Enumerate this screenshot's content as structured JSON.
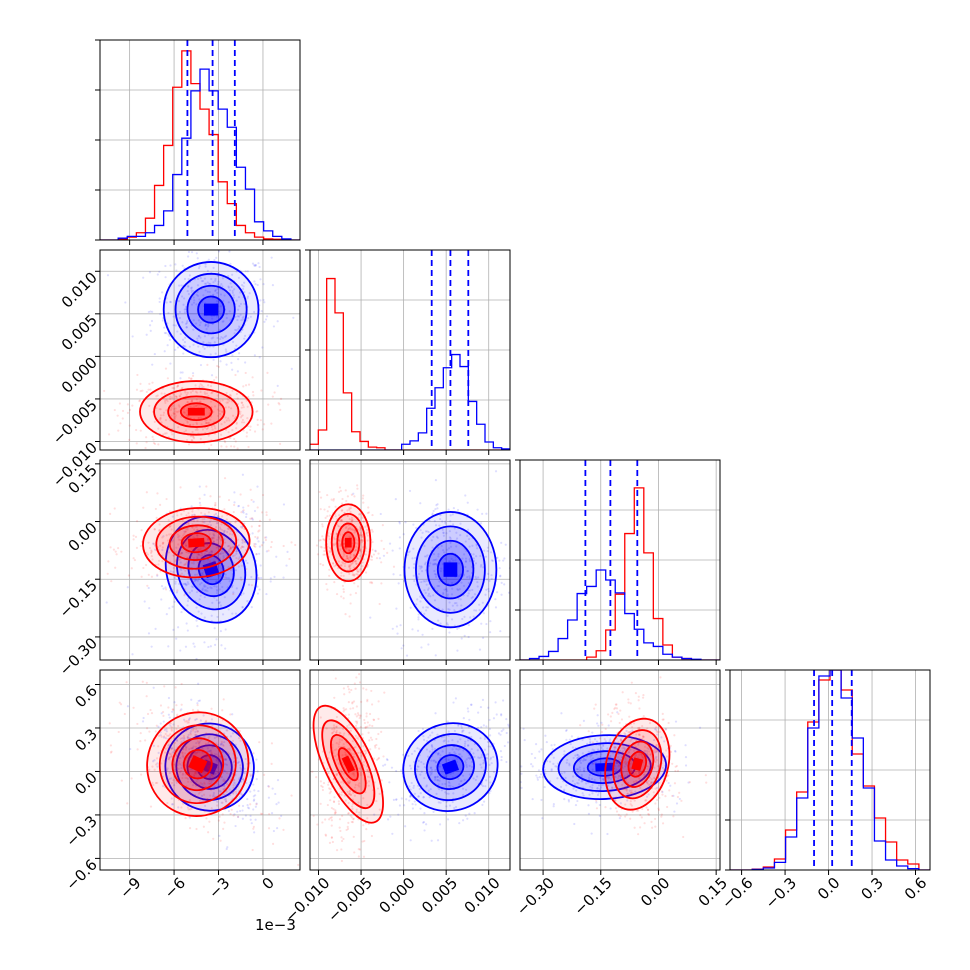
{
  "chart_data": {
    "type": "corner",
    "colors": {
      "series_a": "#0000ff",
      "series_b": "#ff0000"
    },
    "grid": true,
    "dashed_quantile_lines_color": "#0000ff",
    "scatter_present": true,
    "contours_present": true,
    "x_offset_label": "1e−3",
    "params": [
      {
        "range": [
          -11,
          2.5
        ],
        "ticks": [
          -9,
          -6,
          -3,
          0
        ],
        "tick_labels": [
          "−9",
          "−6",
          "−3",
          "0"
        ],
        "quantiles": [
          -5.1,
          -3.4,
          -1.9
        ],
        "hist_ylim": [
          0,
          0.0055
        ],
        "hist_a": [
          0,
          0,
          5e-05,
          0.0001,
          0.0001,
          0.0002,
          0.0004,
          0.0008,
          0.0018,
          0.0028,
          0.0041,
          0.0047,
          0.0041,
          0.0036,
          0.0031,
          0.002,
          0.0014,
          0.0005,
          0.00025,
          0.0001,
          3e-05,
          0
        ],
        "hist_b": [
          0,
          0,
          3e-05,
          8e-05,
          0.0002,
          0.0006,
          0.0015,
          0.0026,
          0.0042,
          0.0052,
          0.0043,
          0.0036,
          0.0029,
          0.0016,
          0.001,
          0.0004,
          0.0002,
          8e-05,
          3e-05,
          2e-05,
          0,
          0
        ]
      },
      {
        "range": [
          -0.011,
          0.0125
        ],
        "ticks": [
          -0.01,
          -0.005,
          0.0,
          0.005,
          0.01
        ],
        "tick_labels": [
          "−0.010",
          "−0.005",
          "0.000",
          "0.005",
          "0.010"
        ],
        "quantiles": [
          0.0033,
          0.0055,
          0.0076
        ],
        "hist_ylim": [
          0,
          0.35
        ],
        "hist_a": [
          0,
          0,
          0,
          0,
          0,
          0,
          0,
          0,
          0,
          0,
          0,
          0.01,
          0.016,
          0.03,
          0.073,
          0.109,
          0.144,
          0.167,
          0.146,
          0.085,
          0.045,
          0.014,
          0.004,
          0.002
        ],
        "hist_b": [
          0.01,
          0.035,
          0.3,
          0.24,
          0.1,
          0.032,
          0.015,
          0.005,
          0.004,
          0,
          0,
          0,
          0,
          0,
          0,
          0,
          0,
          0,
          0,
          0,
          0,
          0,
          0,
          0
        ]
      },
      {
        "range": [
          -0.36,
          0.16
        ],
        "ticks": [
          -0.3,
          -0.15,
          0.0,
          0.15
        ],
        "tick_labels": [
          "−0.30",
          "−0.15",
          "0.00",
          "0.15"
        ],
        "quantiles": [
          -0.19,
          -0.125,
          -0.055
        ],
        "hist_ylim": [
          0,
          0.28
        ],
        "hist_a": [
          0,
          0.002,
          0.005,
          0.012,
          0.03,
          0.056,
          0.093,
          0.103,
          0.126,
          0.112,
          0.094,
          0.065,
          0.043,
          0.024,
          0.019,
          0.008,
          0.004,
          0.002,
          0.001,
          0,
          0
        ],
        "hist_b": [
          0,
          0,
          0,
          0,
          0,
          0,
          0,
          0.004,
          0.013,
          0.042,
          0.092,
          0.177,
          0.241,
          0.15,
          0.058,
          0.021,
          0.004,
          0.002,
          0,
          0,
          0
        ]
      },
      {
        "range": [
          -0.68,
          0.7
        ],
        "ticks": [
          -0.6,
          -0.3,
          0.0,
          0.3,
          0.6
        ],
        "tick_labels": [
          "−0.6",
          "−0.3",
          "0.0",
          "0.3",
          "0.6"
        ],
        "quantiles": [
          -0.1,
          0.025,
          0.16
        ],
        "hist_ylim": [
          0,
          1.0
        ],
        "hist_a": [
          0,
          0,
          0.003,
          0.01,
          0.038,
          0.165,
          0.36,
          0.71,
          0.97,
          1.0,
          0.86,
          0.66,
          0.41,
          0.145,
          0.05,
          0.02,
          0.007,
          0
        ],
        "hist_b": [
          0,
          0,
          0.004,
          0.015,
          0.055,
          0.2,
          0.39,
          0.74,
          0.95,
          1.0,
          0.9,
          0.58,
          0.42,
          0.26,
          0.14,
          0.05,
          0.03,
          0
        ]
      }
    ],
    "panels_2d": [
      {
        "row": 1,
        "col": 0,
        "a": {
          "center": [
            -3.5,
            0.0055
          ],
          "spread": [
            1.6,
            0.0028
          ],
          "rot": 0
        },
        "b": {
          "center": [
            -4.5,
            -0.0065
          ],
          "spread": [
            1.9,
            0.0018
          ],
          "rot": 0
        }
      },
      {
        "row": 2,
        "col": 0,
        "a": {
          "center": [
            -3.5,
            -0.125
          ],
          "spread": [
            1.5,
            0.07
          ],
          "rot": 0.3
        },
        "b": {
          "center": [
            -4.5,
            -0.055
          ],
          "spread": [
            1.8,
            0.045
          ],
          "rot": 0.1
        }
      },
      {
        "row": 2,
        "col": 1,
        "a": {
          "center": [
            0.0055,
            -0.125
          ],
          "spread": [
            0.0027,
            0.075
          ],
          "rot": 0.0
        },
        "b": {
          "center": [
            -0.0065,
            -0.055
          ],
          "spread": [
            0.0013,
            0.05
          ],
          "rot": 0.0
        }
      },
      {
        "row": 3,
        "col": 0,
        "a": {
          "center": [
            -3.6,
            0.03
          ],
          "spread": [
            1.5,
            0.15
          ],
          "rot": -0.5
        },
        "b": {
          "center": [
            -4.4,
            0.05
          ],
          "spread": [
            1.7,
            0.18
          ],
          "rot": -0.5
        }
      },
      {
        "row": 3,
        "col": 1,
        "a": {
          "center": [
            0.0055,
            0.03
          ],
          "spread": [
            0.0028,
            0.15
          ],
          "rot": 0.45
        },
        "b": {
          "center": [
            -0.0065,
            0.05
          ],
          "spread": [
            0.0014,
            0.22
          ],
          "rot": 0.2
        }
      },
      {
        "row": 3,
        "col": 2,
        "a": {
          "center": [
            -0.14,
            0.03
          ],
          "spread": [
            0.08,
            0.11
          ],
          "rot": 0.1
        },
        "b": {
          "center": [
            -0.055,
            0.05
          ],
          "spread": [
            0.04,
            0.16
          ],
          "rot": -0.2
        }
      }
    ]
  }
}
